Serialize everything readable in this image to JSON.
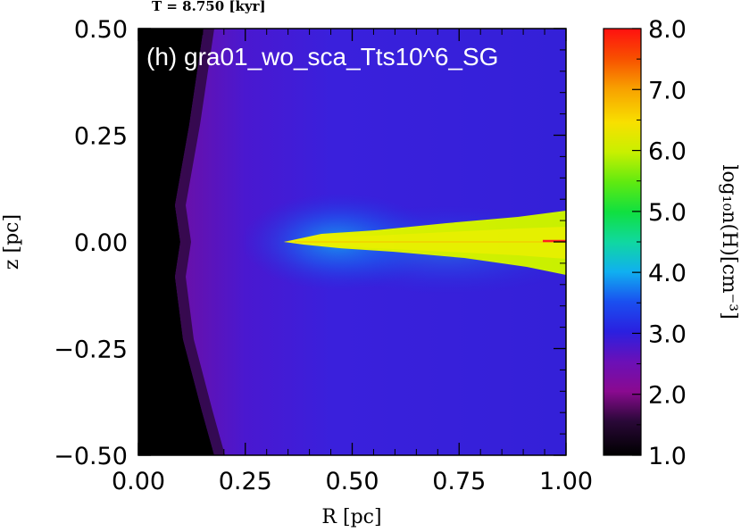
{
  "chart_data": {
    "type": "heatmap",
    "time_label": "T =     8.750 [kyr]",
    "panel_title": "(h) gra01_wo_sca_Tts10^6_SG",
    "xlabel": "R [pc]",
    "ylabel": "z [pc]",
    "xlim": [
      0.0,
      1.0
    ],
    "ylim": [
      -0.5,
      0.5
    ],
    "x_ticks": [
      "0.00",
      "0.25",
      "0.50",
      "0.75",
      "1.00"
    ],
    "x_tick_values": [
      0.0,
      0.25,
      0.5,
      0.75,
      1.0
    ],
    "y_ticks": [
      "0.50",
      "0.25",
      "0.00",
      "−0.25",
      "−0.50"
    ],
    "y_tick_values": [
      0.5,
      0.25,
      0.0,
      -0.25,
      -0.5
    ],
    "colorbar": {
      "label": "log₁₀n(H)[cm⁻³]",
      "range": [
        1.0,
        8.0
      ],
      "ticks": [
        "8.0",
        "7.0",
        "6.0",
        "5.0",
        "4.0",
        "3.0",
        "2.0",
        "1.0"
      ],
      "tick_values": [
        8.0,
        7.0,
        6.0,
        5.0,
        4.0,
        3.0,
        2.0,
        1.0
      ],
      "colormap": [
        "#000000",
        "#3a0a4a",
        "#9a0a9a",
        "#5a10c8",
        "#2020e6",
        "#1a78f0",
        "#10d8c8",
        "#10e040",
        "#a8f000",
        "#f8e800",
        "#f87800",
        "#ff1010"
      ]
    },
    "regions": [
      {
        "name": "evacuated-region",
        "log_n": 1.0
      },
      {
        "name": "envelope",
        "log_n": 2.9
      },
      {
        "name": "disk",
        "log_n": 6.3
      }
    ]
  }
}
